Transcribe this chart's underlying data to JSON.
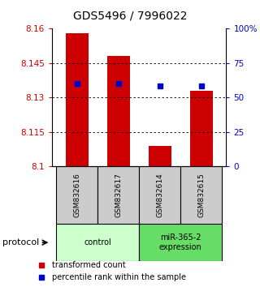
{
  "title": "GDS5496 / 7996022",
  "samples": [
    "GSM832616",
    "GSM832617",
    "GSM832614",
    "GSM832615"
  ],
  "bar_values": [
    8.158,
    8.148,
    8.109,
    8.133
  ],
  "percentile_values": [
    8.136,
    8.136,
    8.135,
    8.135
  ],
  "bar_color": "#cc0000",
  "marker_color": "#0000cc",
  "ylim": [
    8.1,
    8.16
  ],
  "yticks_left": [
    8.1,
    8.115,
    8.13,
    8.145,
    8.16
  ],
  "yticks_left_labels": [
    "8.1",
    "8.115",
    "8.13",
    "8.145",
    "8.16"
  ],
  "yticks_right": [
    0,
    25,
    50,
    75,
    100
  ],
  "yticks_right_labels": [
    "0",
    "25",
    "50",
    "75",
    "100%"
  ],
  "groups": [
    {
      "label": "control",
      "samples": [
        0,
        1
      ],
      "color": "#ccffcc"
    },
    {
      "label": "miR-365-2\nexpression",
      "samples": [
        2,
        3
      ],
      "color": "#66dd66"
    }
  ],
  "protocol_label": "protocol",
  "legend_items": [
    {
      "color": "#cc0000",
      "label": "transformed count"
    },
    {
      "color": "#0000cc",
      "label": "percentile rank within the sample"
    }
  ],
  "background_color": "#ffffff",
  "bar_width": 0.55,
  "sample_box_color": "#cccccc",
  "grid_color": "#000000",
  "title_fontsize": 10,
  "tick_fontsize": 7.5
}
